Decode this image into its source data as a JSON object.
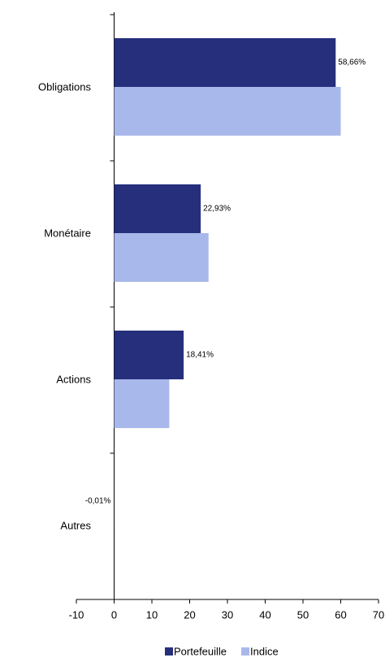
{
  "chart_data": {
    "type": "bar",
    "orientation": "horizontal",
    "categories": [
      "Obligations",
      "Monétaire",
      "Actions",
      "Autres"
    ],
    "series": [
      {
        "name": "Portefeuille",
        "color": "#262f7c",
        "values": [
          58.66,
          22.93,
          18.41,
          -0.01
        ],
        "value_labels": [
          "58,66%",
          "22,93%",
          "18,41%",
          "-0,01%"
        ]
      },
      {
        "name": "Indice",
        "color": "#a9b8ea",
        "values": [
          60,
          25,
          14.6,
          0
        ]
      }
    ],
    "xlim": [
      -10,
      70
    ],
    "xticks": [
      -10,
      0,
      10,
      20,
      30,
      40,
      50,
      60,
      70
    ],
    "legend": "bottom"
  }
}
